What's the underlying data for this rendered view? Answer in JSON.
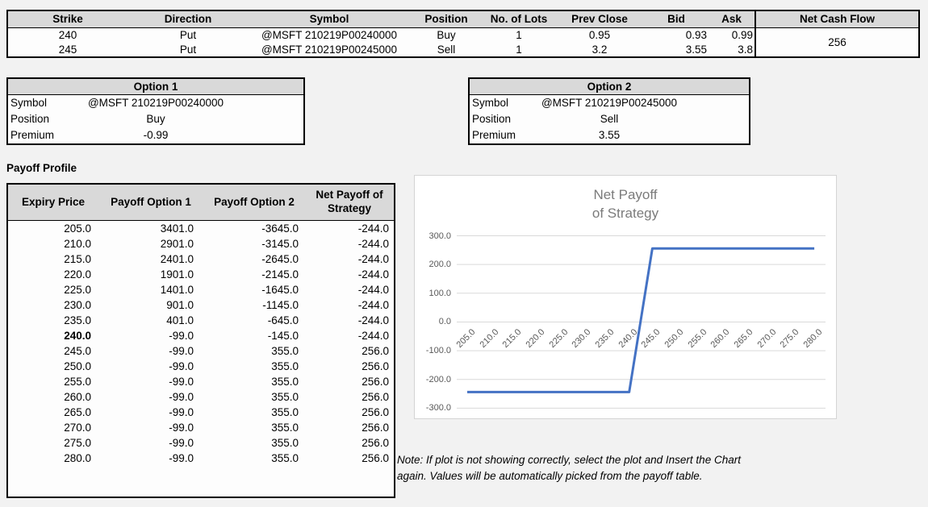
{
  "trade_table": {
    "headers": [
      "Strike",
      "Direction",
      "Symbol",
      "Position",
      "No. of Lots",
      "Prev Close",
      "Bid",
      "Ask",
      "Net Cash Flow"
    ],
    "rows": [
      [
        "240",
        "Put",
        "@MSFT 210219P00240000",
        "Buy",
        "1",
        "0.95",
        "0.93",
        "0.99"
      ],
      [
        "245",
        "Put",
        "@MSFT 210219P00245000",
        "Sell",
        "1",
        "3.2",
        "3.55",
        "3.8"
      ]
    ],
    "net_cash_flow": "256"
  },
  "option1": {
    "title": "Option 1",
    "rows": [
      {
        "label": "Symbol",
        "value": "@MSFT 210219P00240000"
      },
      {
        "label": "Position",
        "value": "Buy"
      },
      {
        "label": "Premium",
        "value": "-0.99"
      }
    ]
  },
  "option2": {
    "title": "Option 2",
    "rows": [
      {
        "label": "Symbol",
        "value": "@MSFT 210219P00245000"
      },
      {
        "label": "Position",
        "value": "Sell"
      },
      {
        "label": "Premium",
        "value": "3.55"
      }
    ]
  },
  "payoff_profile": {
    "title": "Payoff Profile",
    "headers": [
      "Expiry Price",
      "Payoff Option 1",
      "Payoff Option 2",
      "Net Payoff of Strategy"
    ],
    "highlight_expiry": "240.0",
    "rows": [
      [
        "205.0",
        "3401.0",
        "-3645.0",
        "-244.0"
      ],
      [
        "210.0",
        "2901.0",
        "-3145.0",
        "-244.0"
      ],
      [
        "215.0",
        "2401.0",
        "-2645.0",
        "-244.0"
      ],
      [
        "220.0",
        "1901.0",
        "-2145.0",
        "-244.0"
      ],
      [
        "225.0",
        "1401.0",
        "-1645.0",
        "-244.0"
      ],
      [
        "230.0",
        "901.0",
        "-1145.0",
        "-244.0"
      ],
      [
        "235.0",
        "401.0",
        "-645.0",
        "-244.0"
      ],
      [
        "240.0",
        "-99.0",
        "-145.0",
        "-244.0"
      ],
      [
        "245.0",
        "-99.0",
        "355.0",
        "256.0"
      ],
      [
        "250.0",
        "-99.0",
        "355.0",
        "256.0"
      ],
      [
        "255.0",
        "-99.0",
        "355.0",
        "256.0"
      ],
      [
        "260.0",
        "-99.0",
        "355.0",
        "256.0"
      ],
      [
        "265.0",
        "-99.0",
        "355.0",
        "256.0"
      ],
      [
        "270.0",
        "-99.0",
        "355.0",
        "256.0"
      ],
      [
        "275.0",
        "-99.0",
        "355.0",
        "256.0"
      ],
      [
        "280.0",
        "-99.0",
        "355.0",
        "256.0"
      ]
    ]
  },
  "chart_data": {
    "type": "line",
    "title": "Net Payoff of Strategy",
    "title_lines": [
      "Net Payoff",
      "of Strategy"
    ],
    "categories": [
      "205.0",
      "210.0",
      "215.0",
      "220.0",
      "225.0",
      "230.0",
      "235.0",
      "240.0",
      "245.0",
      "250.0",
      "255.0",
      "260.0",
      "265.0",
      "270.0",
      "275.0",
      "280.0"
    ],
    "series": [
      {
        "name": "Net Payoff of Strategy",
        "values": [
          -244,
          -244,
          -244,
          -244,
          -244,
          -244,
          -244,
          -244,
          256,
          256,
          256,
          256,
          256,
          256,
          256,
          256
        ]
      }
    ],
    "ylim": [
      -300,
      300
    ],
    "yticks": [
      "300.0",
      "200.0",
      "100.0",
      "0.0",
      "-100.0",
      "-200.0",
      "-300.0"
    ],
    "grid": true,
    "legend": "none",
    "line_color": "#4472C4"
  },
  "note_lines": [
    "Note: If plot is not showing correctly, select the plot and Insert the Chart",
    "again. Values will be automatically picked from the payoff table."
  ],
  "colors": {
    "header_fill": "#d9d9d9",
    "table_border": "#000000",
    "chart_line": "#4472C4",
    "chart_grid": "#d9d9d9",
    "chart_text": "#595959",
    "chart_title_text": "#7b7b7b",
    "page_background": "#f2f2f2"
  }
}
